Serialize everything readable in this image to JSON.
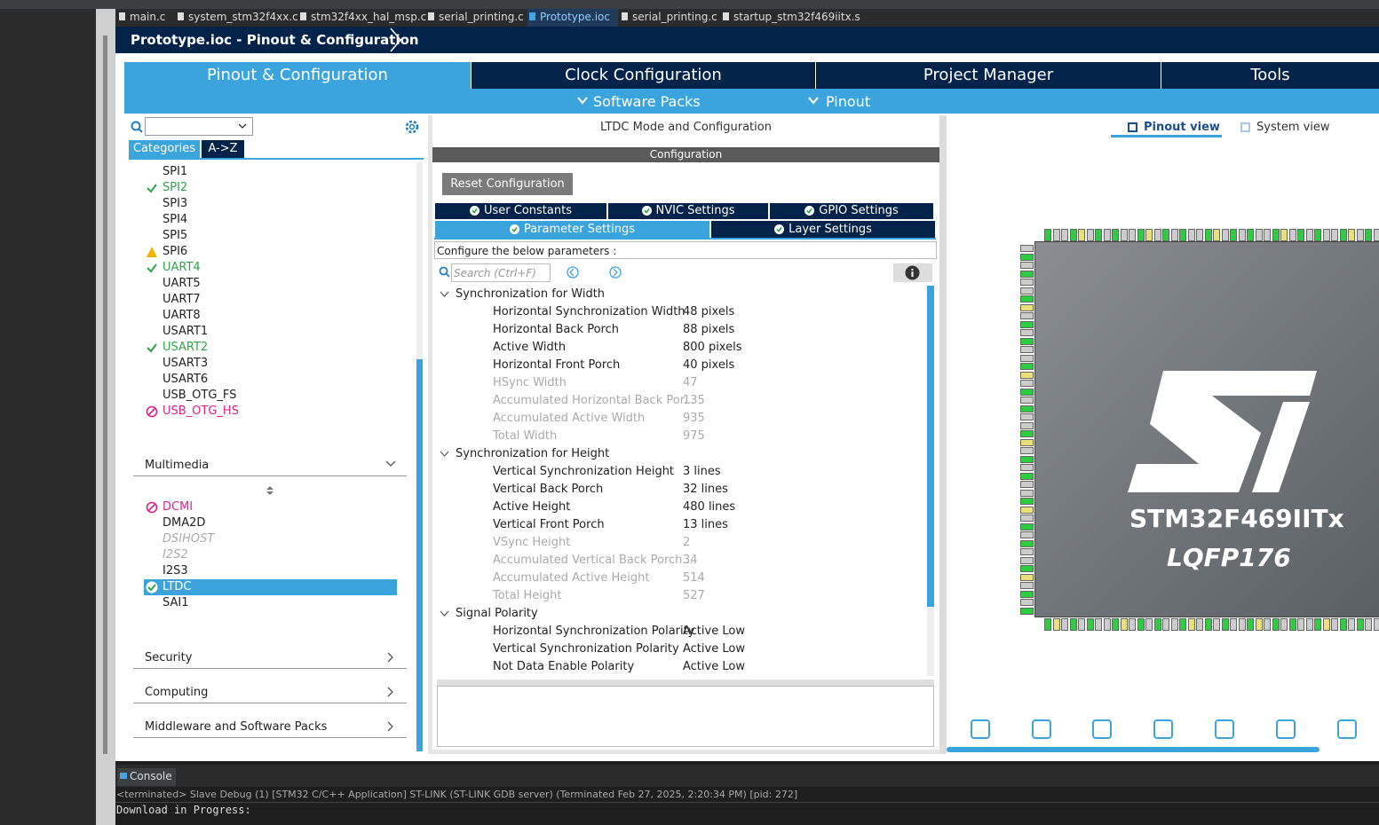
{
  "editor_tabs": [
    "main.c",
    "system_stm32f4xx.c",
    "stm32f4xx_hal_msp.c",
    "serial_printing.c",
    "Prototype.ioc",
    "serial_printing.c",
    "startup_stm32f469iitx.s"
  ],
  "breadcrumb": "Prototype.ioc - Pinout & Configuration",
  "main_tabs": [
    "Pinout & Configuration",
    "Clock Configuration",
    "Project Manager",
    "Tools"
  ],
  "sub_menus": [
    "Software Packs",
    "Pinout"
  ],
  "sidebar": {
    "tabs": [
      "Categories",
      "A->Z"
    ],
    "items": [
      {
        "name": "SPI1",
        "status": "none"
      },
      {
        "name": "SPI2",
        "status": "ok"
      },
      {
        "name": "SPI3",
        "status": "none"
      },
      {
        "name": "SPI4",
        "status": "none"
      },
      {
        "name": "SPI5",
        "status": "none"
      },
      {
        "name": "SPI6",
        "status": "warn"
      },
      {
        "name": "UART4",
        "status": "ok"
      },
      {
        "name": "UART5",
        "status": "none"
      },
      {
        "name": "UART7",
        "status": "none"
      },
      {
        "name": "UART8",
        "status": "none"
      },
      {
        "name": "USART1",
        "status": "none"
      },
      {
        "name": "USART2",
        "status": "ok"
      },
      {
        "name": "USART3",
        "status": "none"
      },
      {
        "name": "USART6",
        "status": "none"
      },
      {
        "name": "USB_OTG_FS",
        "status": "none"
      },
      {
        "name": "USB_OTG_HS",
        "status": "blocked"
      }
    ],
    "multimedia": {
      "title": "Multimedia",
      "items": [
        {
          "name": "DCMI",
          "status": "blocked"
        },
        {
          "name": "DMA2D",
          "status": "none"
        },
        {
          "name": "DSIHOST",
          "status": "disabled"
        },
        {
          "name": "I2S2",
          "status": "disabled"
        },
        {
          "name": "I2S3",
          "status": "none"
        },
        {
          "name": "LTDC",
          "status": "selected"
        },
        {
          "name": "SAI1",
          "status": "none"
        }
      ]
    },
    "sections": [
      "Security",
      "Computing",
      "Middleware and Software Packs"
    ]
  },
  "center": {
    "title": "LTDC Mode and Configuration",
    "config_header": "Configuration",
    "reset_button": "Reset Configuration",
    "tabs_row1": [
      "User Constants",
      "NVIC Settings",
      "GPIO Settings"
    ],
    "tabs_row2": [
      "Parameter Settings",
      "Layer Settings"
    ],
    "hint": "Configure the below parameters :",
    "search_placeholder": "Search (Ctrl+F)",
    "groups": [
      {
        "title": "Synchronization for Width",
        "params": [
          {
            "name": "Horizontal Synchronization Width",
            "value": "48 pixels",
            "enabled": true
          },
          {
            "name": "Horizontal Back Porch",
            "value": "88 pixels",
            "enabled": true
          },
          {
            "name": "Active Width",
            "value": "800 pixels",
            "enabled": true
          },
          {
            "name": "Horizontal Front Porch",
            "value": "40 pixels",
            "enabled": true
          },
          {
            "name": "HSync Width",
            "value": "47",
            "enabled": false
          },
          {
            "name": "Accumulated Horizontal Back Por...",
            "value": "135",
            "enabled": false
          },
          {
            "name": "Accumulated Active Width",
            "value": "935",
            "enabled": false
          },
          {
            "name": "Total Width",
            "value": "975",
            "enabled": false
          }
        ]
      },
      {
        "title": "Synchronization for Height",
        "params": [
          {
            "name": "Vertical Synchronization Height",
            "value": "3 lines",
            "enabled": true
          },
          {
            "name": "Vertical Back Porch",
            "value": "32 lines",
            "enabled": true
          },
          {
            "name": "Active Height",
            "value": "480 lines",
            "enabled": true
          },
          {
            "name": "Vertical Front Porch",
            "value": "13 lines",
            "enabled": true
          },
          {
            "name": "VSync Height",
            "value": "2",
            "enabled": false
          },
          {
            "name": "Accumulated Vertical Back Porch...",
            "value": "34",
            "enabled": false
          },
          {
            "name": "Accumulated Active Height",
            "value": "514",
            "enabled": false
          },
          {
            "name": "Total Height",
            "value": "527",
            "enabled": false
          }
        ]
      },
      {
        "title": "Signal Polarity",
        "params": [
          {
            "name": "Horizontal Synchronization Polarity",
            "value": "Active Low",
            "enabled": true
          },
          {
            "name": "Vertical Synchronization Polarity",
            "value": "Active Low",
            "enabled": true
          },
          {
            "name": "Not Data Enable Polarity",
            "value": "Active Low",
            "enabled": true
          }
        ]
      }
    ]
  },
  "right": {
    "view_tabs": [
      "Pinout view",
      "System view"
    ],
    "chip_name": "STM32F469IITx",
    "package": "LQFP176"
  },
  "console": {
    "tab": "Console",
    "status": "<terminated> Slave Debug (1) [STM32 C/C++ Application] ST-LINK (ST-LINK GDB server) (Terminated Feb 27, 2025, 2:20:34 PM) [pid: 272]",
    "output": "Download in Progress:"
  }
}
